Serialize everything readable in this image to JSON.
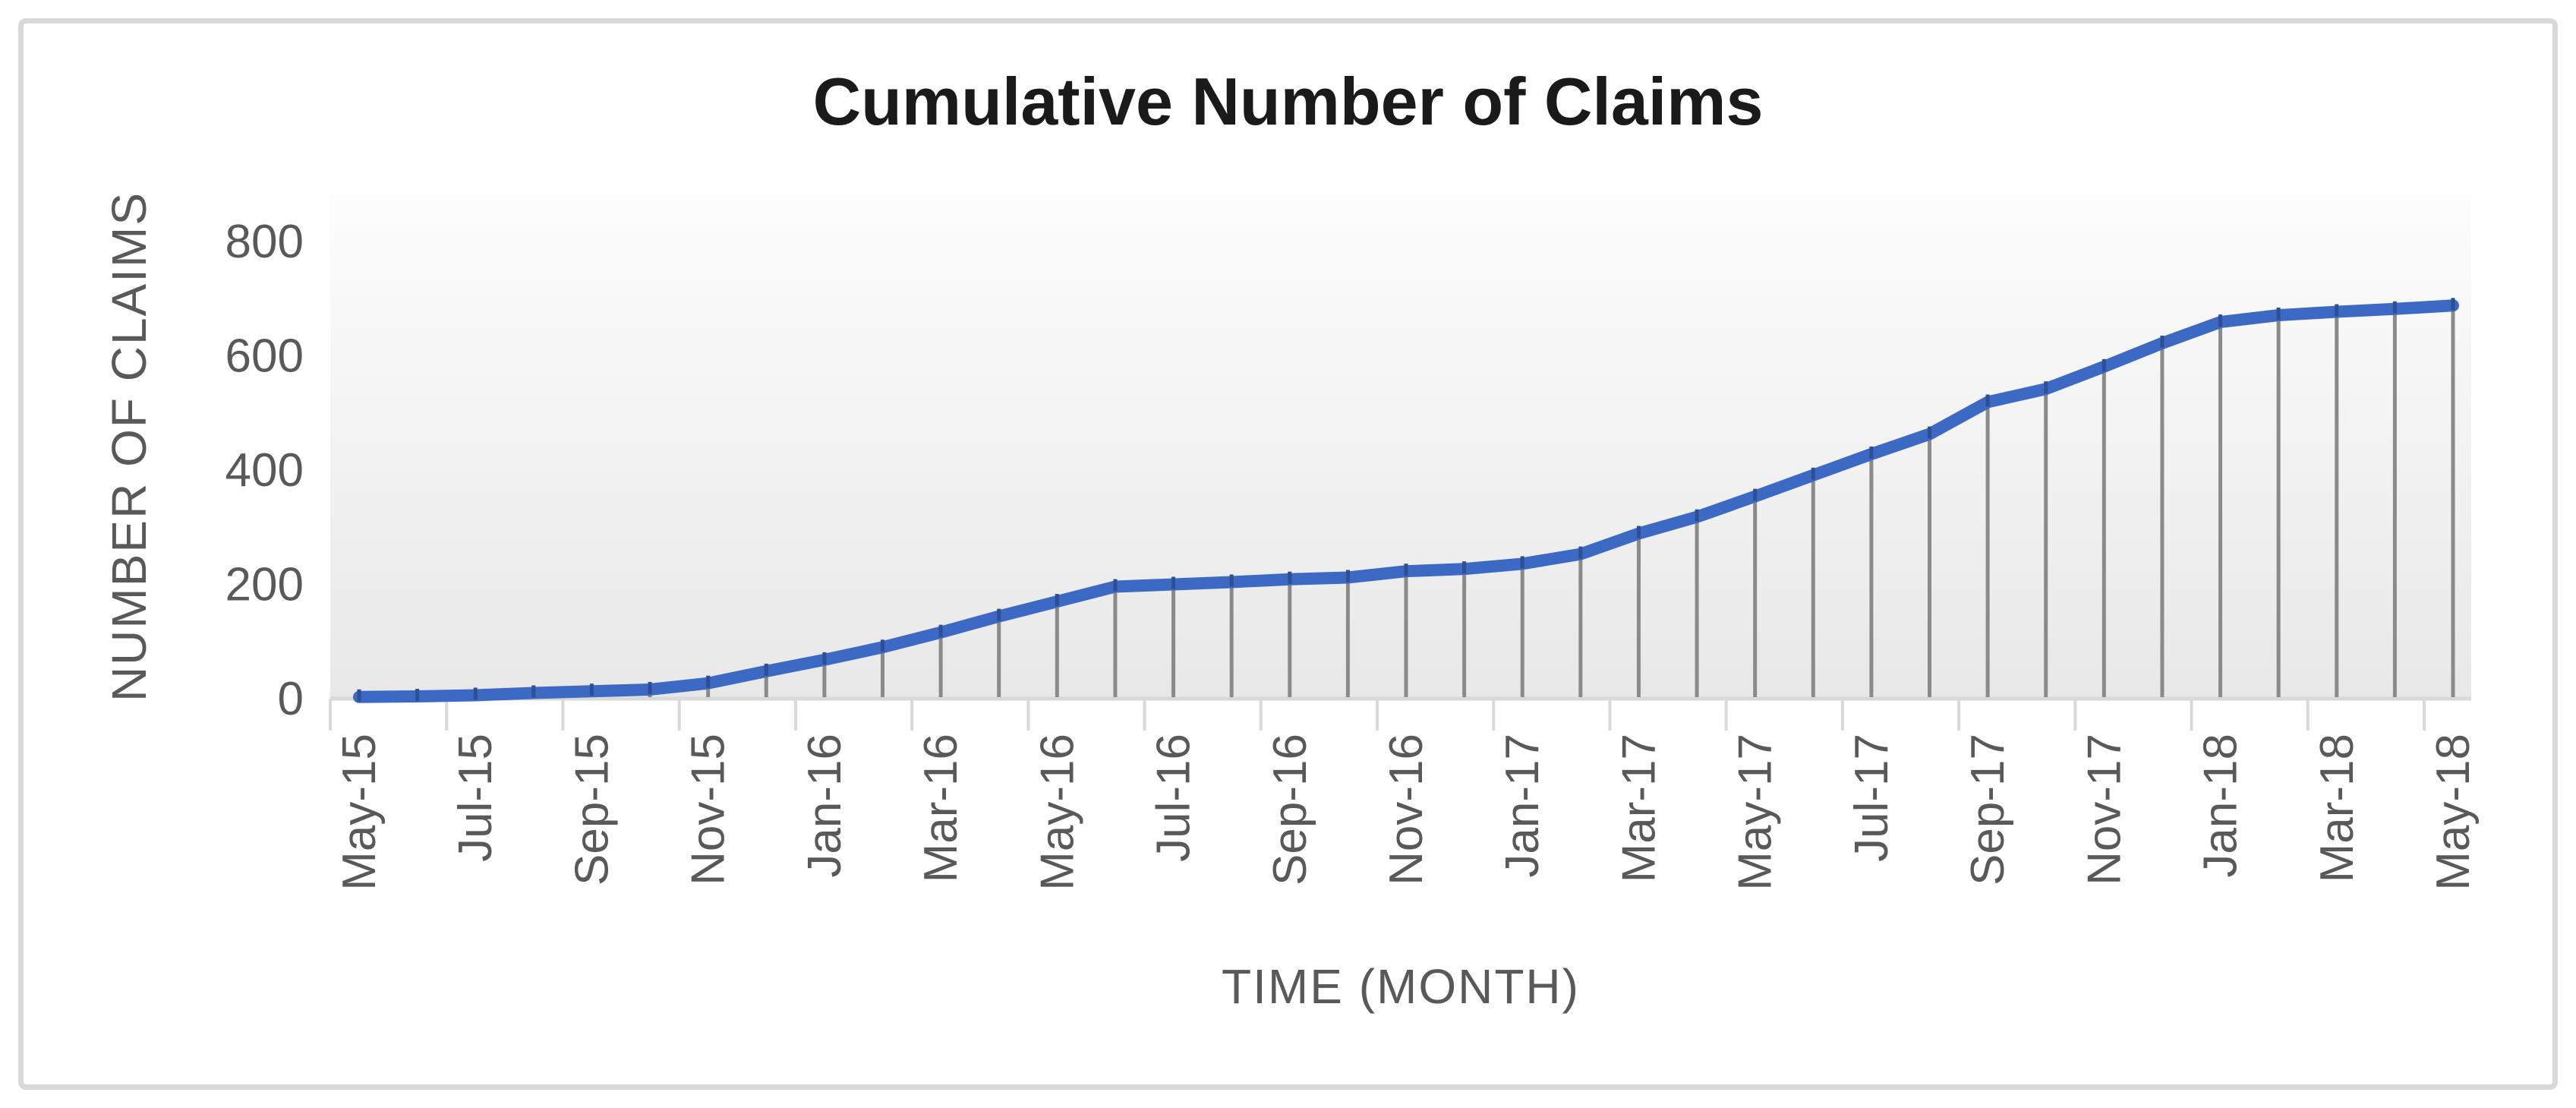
{
  "chart": {
    "title": "Cumulative Number of Claims",
    "x_axis_title": "TIME (MONTH)",
    "y_axis_title": "NUMBER OF CLAIMS"
  },
  "chart_data": {
    "type": "line",
    "title": "Cumulative Number of Claims",
    "xlabel": "TIME (MONTH)",
    "ylabel": "NUMBER OF CLAIMS",
    "ylim": [
      0,
      800
    ],
    "y_ticks": [
      0,
      200,
      400,
      600,
      800
    ],
    "grid": false,
    "legend": false,
    "drop_lines": true,
    "categories": [
      "May-15",
      "Jun-15",
      "Jul-15",
      "Aug-15",
      "Sep-15",
      "Oct-15",
      "Nov-15",
      "Dec-15",
      "Jan-16",
      "Feb-16",
      "Mar-16",
      "Apr-16",
      "May-16",
      "Jun-16",
      "Jul-16",
      "Aug-16",
      "Sep-16",
      "Oct-16",
      "Nov-16",
      "Dec-16",
      "Jan-17",
      "Feb-17",
      "Mar-17",
      "Apr-17",
      "May-17",
      "Jun-17",
      "Jul-17",
      "Aug-17",
      "Sep-17",
      "Oct-17",
      "Nov-17",
      "Dec-17",
      "Jan-18",
      "Feb-18",
      "Mar-18",
      "Apr-18",
      "May-18"
    ],
    "values": [
      3,
      4,
      6,
      10,
      13,
      16,
      27,
      48,
      68,
      90,
      116,
      144,
      170,
      196,
      200,
      204,
      209,
      212,
      223,
      227,
      236,
      253,
      289,
      318,
      354,
      391,
      428,
      463,
      519,
      542,
      581,
      622,
      659,
      671,
      677,
      682,
      688
    ],
    "x_tick_labels_shown": [
      "May-15",
      "Jul-15",
      "Sep-15",
      "Nov-15",
      "Jan-16",
      "Mar-16",
      "May-16",
      "Jul-16",
      "Sep-16",
      "Nov-16",
      "Jan-17",
      "Mar-17",
      "May-17",
      "Jul-17",
      "Sep-17",
      "Nov-17",
      "Jan-18",
      "Mar-18",
      "May-18"
    ]
  },
  "style": {
    "line_color": "#3C69C4",
    "marker_color": "#2E4F92",
    "drop_line_color": "#8A8A8A",
    "axis_color": "#D9D9D9",
    "label_color": "#595959",
    "title_color": "#1A1A1A",
    "plot_gradient_top": "#FDFDFD",
    "plot_gradient_bottom": "#E8E8E8",
    "frame_border_color": "#D9D9D9"
  }
}
